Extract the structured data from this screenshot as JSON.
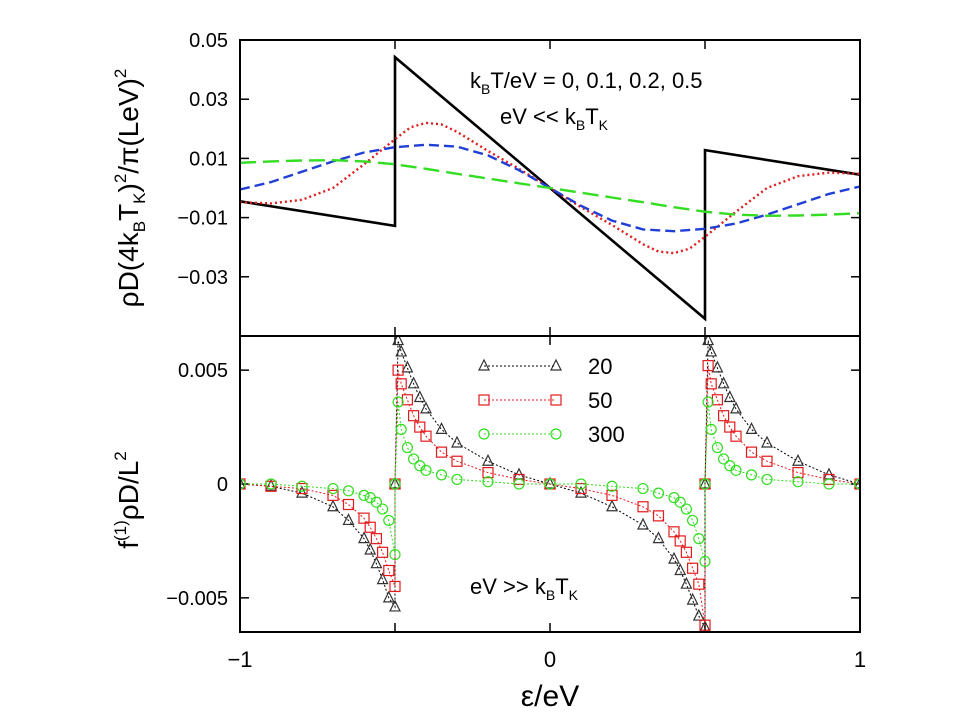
{
  "figure": {
    "xlabel": "ε/eV",
    "xticks": [
      "−1",
      "0",
      "1"
    ]
  },
  "chart_data": [
    {
      "type": "line",
      "panel": "top",
      "ylabel_parts": [
        "ρD(4k",
        "B",
        "T",
        "K",
        ")",
        "2",
        "/π(LeV)",
        "2"
      ],
      "xlim": [
        -1,
        1
      ],
      "ylim": [
        -0.05,
        0.05
      ],
      "yticks": [
        {
          "value": 0.05,
          "label": "0.05"
        },
        {
          "value": 0.03,
          "label": "0.03"
        },
        {
          "value": 0.01,
          "label": "0.01"
        },
        {
          "value": -0.01,
          "label": "−0.01"
        },
        {
          "value": -0.03,
          "label": "−0.03"
        }
      ],
      "annotations": [
        {
          "parts": [
            "k",
            "B",
            "T/eV =  0, 0.1, 0.2, 0.5"
          ]
        },
        {
          "parts": [
            "eV << k",
            "B",
            "T",
            "K"
          ]
        }
      ],
      "series": [
        {
          "color": "#000000",
          "dash": "solid",
          "x": [
            -1,
            -0.5,
            -0.5,
            0.5,
            0.5,
            1
          ],
          "y": [
            -0.0045,
            -0.0128,
            0.0442,
            -0.0442,
            0.0128,
            0.0045
          ]
        },
        {
          "color": "#e41a1c",
          "dash": "dot",
          "x": [
            -1,
            -0.9,
            -0.8,
            -0.7,
            -0.6,
            -0.5,
            -0.45,
            -0.4,
            -0.35,
            -0.3,
            -0.2,
            -0.1,
            0,
            0.1,
            0.2,
            0.3,
            0.35,
            0.4,
            0.45,
            0.5,
            0.6,
            0.7,
            0.8,
            0.9,
            1
          ],
          "y": [
            -0.0048,
            -0.0052,
            -0.004,
            0.0,
            0.008,
            0.0165,
            0.0205,
            0.022,
            0.0215,
            0.019,
            0.0125,
            0.0065,
            0.0,
            -0.0065,
            -0.0125,
            -0.019,
            -0.0215,
            -0.022,
            -0.0205,
            -0.0165,
            -0.008,
            0.0,
            0.004,
            0.0052,
            0.0048
          ]
        },
        {
          "color": "#1f3fd6",
          "dash": "dash",
          "x": [
            -1,
            -0.9,
            -0.8,
            -0.7,
            -0.6,
            -0.5,
            -0.4,
            -0.3,
            -0.2,
            -0.1,
            0,
            0.1,
            0.2,
            0.3,
            0.4,
            0.5,
            0.6,
            0.7,
            0.8,
            0.9,
            1
          ],
          "y": [
            -0.0005,
            0.002,
            0.0055,
            0.009,
            0.012,
            0.0138,
            0.0146,
            0.014,
            0.011,
            0.006,
            0.0,
            -0.006,
            -0.011,
            -0.014,
            -0.0146,
            -0.0138,
            -0.012,
            -0.009,
            -0.0055,
            -0.002,
            0.0005
          ]
        },
        {
          "color": "#33dd22",
          "dash": "longdash",
          "x": [
            -1,
            -0.9,
            -0.8,
            -0.7,
            -0.6,
            -0.5,
            -0.4,
            -0.3,
            -0.2,
            -0.1,
            0,
            0.1,
            0.2,
            0.3,
            0.4,
            0.5,
            0.6,
            0.7,
            0.8,
            0.9,
            1
          ],
          "y": [
            0.0085,
            0.009,
            0.0093,
            0.0094,
            0.009,
            0.008,
            0.0065,
            0.0048,
            0.0032,
            0.0016,
            0.0,
            -0.0016,
            -0.0032,
            -0.0048,
            -0.0065,
            -0.008,
            -0.009,
            -0.0094,
            -0.0093,
            -0.009,
            -0.0085
          ]
        }
      ]
    },
    {
      "type": "scatter",
      "panel": "bottom",
      "ylabel_parts": [
        "f",
        "(1)",
        "ρD/L",
        "2"
      ],
      "xlim": [
        -1,
        1
      ],
      "ylim": [
        -0.0065,
        0.0065
      ],
      "yticks": [
        {
          "value": 0.005,
          "label": "0.005"
        },
        {
          "value": 0,
          "label": "0"
        },
        {
          "value": -0.005,
          "label": "−0.005"
        }
      ],
      "annotations": [
        {
          "parts": [
            "eV >> k",
            "B",
            "T",
            "K"
          ]
        }
      ],
      "series": [
        {
          "name": "20",
          "marker": "triangle",
          "color": "#333333",
          "line_color": "#000000",
          "x": [
            -1.0,
            -0.9,
            -0.8,
            -0.7,
            -0.65,
            -0.6,
            -0.58,
            -0.56,
            -0.54,
            -0.52,
            -0.5,
            -0.5,
            -0.49,
            -0.48,
            -0.46,
            -0.44,
            -0.42,
            -0.4,
            -0.35,
            -0.3,
            -0.2,
            -0.1,
            0.0,
            0.1,
            0.2,
            0.3,
            0.35,
            0.4,
            0.42,
            0.44,
            0.46,
            0.48,
            0.5,
            0.5,
            0.51,
            0.52,
            0.54,
            0.56,
            0.58,
            0.6,
            0.65,
            0.7,
            0.8,
            0.9,
            1.0
          ],
          "y": [
            0.0,
            -0.0001,
            -0.0004,
            -0.001,
            -0.0016,
            -0.0024,
            -0.0029,
            -0.0035,
            -0.0042,
            -0.005,
            -0.0054,
            0.0,
            0.0063,
            0.0058,
            0.0051,
            0.0044,
            0.0038,
            0.0033,
            0.0024,
            0.0018,
            0.001,
            0.0004,
            0.0,
            -0.0004,
            -0.001,
            -0.0018,
            -0.0024,
            -0.0033,
            -0.0038,
            -0.0044,
            -0.0051,
            -0.0058,
            -0.0063,
            0.0,
            0.0063,
            0.0058,
            0.0051,
            0.0044,
            0.0038,
            0.0033,
            0.0024,
            0.0018,
            0.001,
            0.0004,
            0.0
          ]
        },
        {
          "name": "50",
          "marker": "square",
          "color": "#e41a1c",
          "line_color": "#e41a1c",
          "x": [
            -1.0,
            -0.9,
            -0.8,
            -0.7,
            -0.65,
            -0.6,
            -0.58,
            -0.56,
            -0.54,
            -0.52,
            -0.5,
            -0.5,
            -0.49,
            -0.48,
            -0.46,
            -0.44,
            -0.42,
            -0.4,
            -0.35,
            -0.3,
            -0.2,
            -0.1,
            0.0,
            0.1,
            0.2,
            0.3,
            0.35,
            0.4,
            0.42,
            0.44,
            0.46,
            0.48,
            0.5,
            0.5,
            0.51,
            0.52,
            0.54,
            0.56,
            0.58,
            0.6,
            0.65,
            0.7,
            0.8,
            0.9,
            1.0
          ],
          "y": [
            0.0,
            -0.0001,
            -0.0002,
            -0.0005,
            -0.0009,
            -0.0015,
            -0.0019,
            -0.0024,
            -0.003,
            -0.0038,
            -0.0045,
            0.0,
            0.005,
            0.0044,
            0.0037,
            0.003,
            0.0025,
            0.0021,
            0.0014,
            0.001,
            0.0005,
            0.0002,
            0.0,
            -0.0002,
            -0.0005,
            -0.001,
            -0.0014,
            -0.0021,
            -0.0025,
            -0.003,
            -0.0037,
            -0.0044,
            -0.0062,
            0.0,
            0.0052,
            0.0044,
            0.0037,
            0.003,
            0.0025,
            0.0021,
            0.0014,
            0.001,
            0.0005,
            0.0002,
            0.0
          ]
        },
        {
          "name": "300",
          "marker": "circle",
          "color": "#33dd22",
          "line_color": "#33dd22",
          "x": [
            -1.0,
            -0.9,
            -0.8,
            -0.7,
            -0.65,
            -0.6,
            -0.58,
            -0.56,
            -0.54,
            -0.52,
            -0.5,
            -0.5,
            -0.49,
            -0.48,
            -0.46,
            -0.44,
            -0.42,
            -0.4,
            -0.35,
            -0.3,
            -0.2,
            -0.1,
            0.0,
            0.1,
            0.2,
            0.3,
            0.35,
            0.4,
            0.42,
            0.44,
            0.46,
            0.48,
            0.5,
            0.5,
            0.51,
            0.52,
            0.54,
            0.56,
            0.58,
            0.6,
            0.65,
            0.7,
            0.8,
            0.9,
            1.0
          ],
          "y": [
            0.0,
            0.0,
            -0.0001,
            -0.0002,
            -0.0003,
            -0.0005,
            -0.0006,
            -0.0008,
            -0.0011,
            -0.0016,
            -0.0031,
            0.0,
            0.0036,
            0.0024,
            0.0016,
            0.0011,
            0.0008,
            0.0006,
            0.0004,
            0.0002,
            0.0001,
            0.0,
            0.0,
            0.0,
            -0.0001,
            -0.0002,
            -0.0004,
            -0.0006,
            -0.0008,
            -0.0011,
            -0.0016,
            -0.0024,
            -0.0034,
            0.0,
            0.0036,
            0.0024,
            0.0016,
            0.0011,
            0.0008,
            0.0006,
            0.0004,
            0.0002,
            0.0001,
            0.0,
            0.0
          ]
        }
      ]
    }
  ]
}
